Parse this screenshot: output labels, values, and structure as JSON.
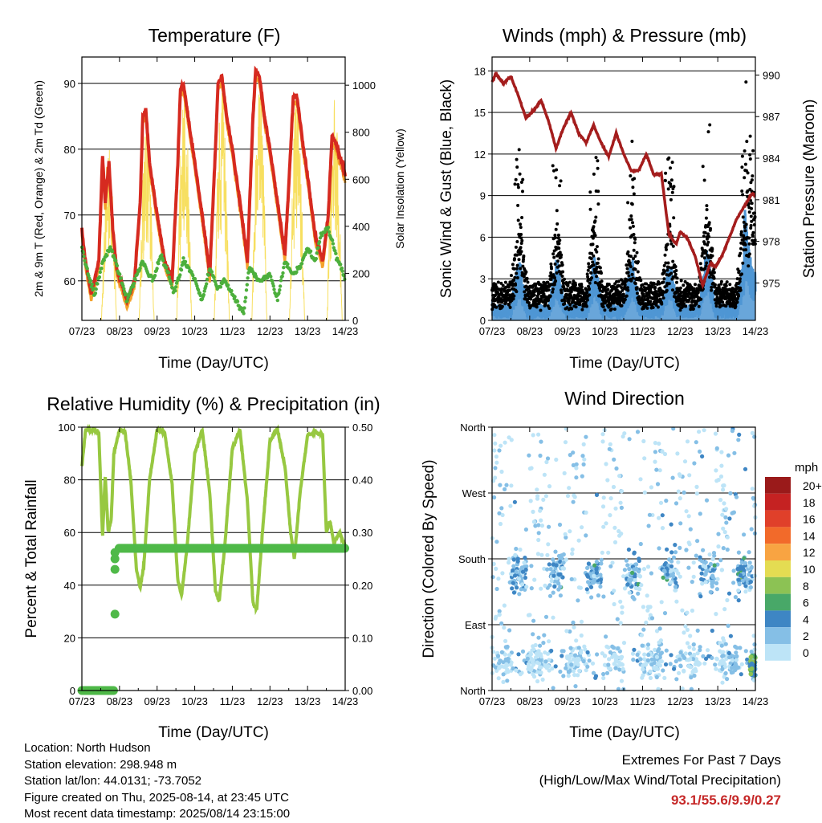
{
  "colors": {
    "temp_red": "#d62a20",
    "temp_orange": "#f4a22c",
    "dewpoint_green": "#4caf3c",
    "solar_yellow": "#f7df60",
    "wind_blue": "#4f96d4",
    "gust_black": "#000000",
    "pressure_maroon": "#a41d1d",
    "rh_green": "#97c841",
    "precip_green": "#4fb948"
  },
  "x_ticks": [
    "07/23",
    "08/23",
    "09/23",
    "10/23",
    "11/23",
    "12/23",
    "13/23",
    "14/23"
  ],
  "footer": {
    "location": "Location: North Hudson",
    "elevation": "Station elevation: 298.948 m",
    "latlon": "Station lat/lon: 44.0131; -73.7052",
    "created": "Figure created on Thu, 2025-08-14, at 23:45 UTC",
    "recent": "Most recent data timestamp: 2025/08/14 23:15:00",
    "extremes_title": "Extremes For Past 7 Days",
    "extremes_subtitle": "(High/Low/Max Wind/Total Precipitation)",
    "extremes_values": "93.1/55.6/9.9/0.27"
  },
  "chart_data": [
    {
      "type": "line",
      "title": "Temperature (F)",
      "xlabel": "Time (Day/UTC)",
      "ylabel": "2m & 9m T (Red, Orange) & 2m Td (Green)",
      "y2label": "Solar Insolation (Yellow)",
      "x_ticks": [
        "07/23",
        "08/23",
        "09/23",
        "10/23",
        "11/23",
        "12/23",
        "13/23",
        "14/23"
      ],
      "xlim": [
        0,
        7
      ],
      "ylim": [
        54,
        94
      ],
      "y_ticks": [
        60,
        70,
        80,
        90
      ],
      "y2lim": [
        0,
        1120
      ],
      "y2_ticks": [
        0,
        200,
        400,
        600,
        800,
        1000
      ],
      "grid": "horizontal",
      "series": [
        {
          "name": "2m T",
          "color": "#d62a20",
          "x": [
            0,
            0.07,
            0.25,
            0.45,
            0.55,
            0.62,
            0.72,
            0.82,
            0.92,
            1.2,
            1.4,
            1.55,
            1.62,
            1.7,
            1.8,
            1.95,
            2.2,
            2.4,
            2.55,
            2.62,
            2.7,
            2.82,
            2.95,
            3.2,
            3.4,
            3.55,
            3.62,
            3.72,
            3.85,
            4.0,
            4.25,
            4.4,
            4.55,
            4.62,
            4.72,
            4.85,
            5.0,
            5.25,
            5.4,
            5.55,
            5.62,
            5.72,
            5.85,
            6.0,
            6.2,
            6.4,
            6.55,
            6.65,
            6.75,
            6.85,
            6.92,
            7.0
          ],
          "values": [
            68,
            64,
            58,
            63,
            79,
            72,
            78,
            68,
            62,
            57,
            60,
            72,
            85,
            86,
            78,
            72,
            63,
            60,
            78,
            89,
            90,
            85,
            80,
            70,
            61,
            80,
            90,
            91,
            85,
            80,
            70,
            63,
            85,
            92,
            91,
            85,
            80,
            70,
            64,
            80,
            88,
            88,
            82,
            76,
            67,
            63,
            70,
            82,
            81,
            79,
            78,
            76
          ]
        },
        {
          "name": "2m Td",
          "color": "#4caf3c",
          "x": [
            0,
            0.2,
            0.35,
            0.55,
            0.75,
            0.9,
            1.2,
            1.4,
            1.6,
            1.9,
            2.1,
            2.3,
            2.45,
            2.7,
            2.95,
            3.2,
            3.4,
            3.6,
            3.8,
            4.1,
            4.3,
            4.45,
            4.7,
            5.0,
            5.2,
            5.4,
            5.6,
            5.8,
            6.0,
            6.2,
            6.35,
            6.55,
            6.8,
            6.9,
            7.0
          ],
          "values": [
            65,
            60,
            58,
            63,
            65,
            63,
            57,
            60,
            63,
            60,
            64,
            61,
            58,
            63,
            61,
            57,
            62,
            59,
            60,
            57,
            55,
            62,
            60,
            61,
            57,
            63,
            61,
            62,
            65,
            63,
            67,
            68,
            63,
            62,
            60
          ]
        }
      ],
      "solar_peaks": {
        "x": [
          0.6,
          1.6,
          2.6,
          3.6,
          4.6,
          5.6,
          6.6
        ],
        "values": [
          760,
          900,
          990,
          1040,
          1040,
          1000,
          1000
        ]
      }
    },
    {
      "type": "scatter",
      "title": "Winds (mph) & Pressure (mb)",
      "xlabel": "Time (Day/UTC)",
      "ylabel": "Sonic Wind & Gust (Blue, Black)",
      "y2label": "Station Pressure (Maroon)",
      "x_ticks": [
        "07/23",
        "08/23",
        "09/23",
        "10/23",
        "11/23",
        "12/23",
        "13/23",
        "14/23"
      ],
      "xlim": [
        0,
        7
      ],
      "ylim": [
        0,
        19
      ],
      "y_ticks": [
        0,
        3,
        6,
        9,
        12,
        15,
        18
      ],
      "y2lim": [
        972.3,
        991.3
      ],
      "y2_ticks": [
        975,
        978,
        981,
        984,
        987,
        990
      ],
      "grid": "horizontal",
      "gust_max": 17.2,
      "pressure": {
        "name": "Station Pressure",
        "color": "#a41d1d",
        "x": [
          0,
          0.1,
          0.3,
          0.5,
          0.7,
          0.9,
          1.1,
          1.3,
          1.5,
          1.7,
          1.9,
          2.1,
          2.3,
          2.5,
          2.7,
          2.9,
          3.1,
          3.3,
          3.5,
          3.7,
          3.9,
          4.1,
          4.3,
          4.5,
          4.7,
          4.9,
          5.0,
          5.2,
          5.4,
          5.6,
          5.8,
          5.95,
          6.1,
          6.3,
          6.5,
          6.7,
          6.9,
          7.0
        ],
        "values": [
          989.5,
          990.1,
          989.4,
          989.9,
          988.5,
          986.9,
          987.4,
          988.2,
          986.7,
          984.7,
          986.2,
          987.3,
          985.8,
          985.1,
          986.4,
          985.1,
          984.1,
          985.8,
          984.3,
          983.1,
          983.1,
          984.3,
          982.8,
          982.9,
          978.5,
          977.8,
          978.7,
          978.2,
          976.9,
          974.8,
          976.4,
          976.2,
          976.9,
          978.2,
          979.6,
          980.5,
          981.4,
          981.4
        ]
      }
    },
    {
      "type": "line",
      "title": "Relative Humidity (%) & Precipitation (in)",
      "xlabel": "Time (Day/UTC)",
      "ylabel": "Percent & Total Rainfall",
      "x_ticks": [
        "07/23",
        "08/23",
        "09/23",
        "10/23",
        "11/23",
        "12/23",
        "13/23",
        "14/23"
      ],
      "xlim": [
        0,
        7
      ],
      "ylim": [
        0,
        100
      ],
      "y_ticks": [
        0,
        20,
        40,
        60,
        80,
        100
      ],
      "y2lim": [
        0,
        0.5
      ],
      "y2_ticks": [
        "0.00",
        "0.10",
        "0.20",
        "0.30",
        "0.40",
        "0.50"
      ],
      "grid": "horizontal",
      "series": [
        {
          "name": "Relative Humidity",
          "color": "#97c841",
          "x": [
            0,
            0.1,
            0.3,
            0.45,
            0.55,
            0.62,
            0.7,
            0.78,
            0.85,
            1.0,
            1.15,
            1.3,
            1.45,
            1.55,
            1.65,
            1.8,
            2.0,
            2.2,
            2.4,
            2.55,
            2.65,
            2.8,
            3.0,
            3.2,
            3.4,
            3.55,
            3.65,
            3.8,
            4.0,
            4.2,
            4.4,
            4.55,
            4.65,
            4.8,
            5.0,
            5.2,
            5.4,
            5.55,
            5.65,
            5.8,
            6.0,
            6.2,
            6.4,
            6.5,
            6.6,
            6.7,
            6.85,
            7.0
          ],
          "values": [
            85,
            99,
            99,
            98,
            58,
            82,
            60,
            65,
            90,
            99,
            98,
            80,
            46,
            39,
            48,
            80,
            99,
            98,
            78,
            42,
            36,
            55,
            90,
            99,
            75,
            38,
            34,
            55,
            92,
            99,
            72,
            33,
            31,
            60,
            95,
            99,
            85,
            60,
            50,
            75,
            97,
            98,
            97,
            60,
            64,
            56,
            60,
            55
          ]
        },
        {
          "name": "Total Precipitation",
          "color": "#4fb948",
          "x": [
            0,
            0.85,
            0.86,
            0.88,
            0.92,
            0.96,
            7.0
          ],
          "values": [
            0,
            0,
            0.145,
            0.23,
            0.25,
            0.27,
            0.27
          ]
        }
      ]
    },
    {
      "type": "scatter",
      "title": "Wind Direction",
      "xlabel": "Time (Day/UTC)",
      "ylabel": "Direction (Colored By Speed)",
      "x_ticks": [
        "07/23",
        "08/23",
        "09/23",
        "10/23",
        "11/23",
        "12/23",
        "13/23",
        "14/23"
      ],
      "xlim": [
        0,
        7
      ],
      "ylim": [
        0,
        360
      ],
      "y_ticks": [
        {
          "value": 0,
          "label": "North"
        },
        {
          "value": 90,
          "label": "East"
        },
        {
          "value": 180,
          "label": "South"
        },
        {
          "value": 270,
          "label": "West"
        },
        {
          "value": 360,
          "label": "North"
        }
      ],
      "grid": "horizontal",
      "colorbar": {
        "title": "mph",
        "labels": [
          "20+",
          "18",
          "16",
          "14",
          "12",
          "10",
          "8",
          "6",
          "4",
          "2",
          "0"
        ],
        "colors": [
          "#9a1a1a",
          "#c52222",
          "#e0402a",
          "#f26a2a",
          "#f8a442",
          "#e4dc52",
          "#8cc254",
          "#48a868",
          "#3e86c4",
          "#85bfe6",
          "#bde4f7"
        ]
      }
    }
  ]
}
